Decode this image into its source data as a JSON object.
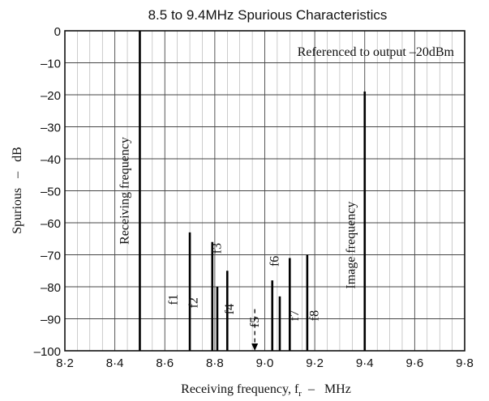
{
  "chart_data": {
    "type": "bar",
    "title": "8.5 to 9.4MHz Spurious Characteristics",
    "xlabel": "Receiving frequency, f",
    "xlabel_sub": "r",
    "xlabel_unit": "–   MHz",
    "ylabel": "Spurious   –   dB",
    "note": "Referenced to output –20dBm",
    "xlim": [
      8.2,
      9.8
    ],
    "ylim": [
      -100,
      0
    ],
    "x_ticks": [
      8.2,
      8.4,
      8.6,
      8.8,
      9.0,
      9.2,
      9.4,
      9.6,
      9.8
    ],
    "x_tick_labels": [
      "8·2",
      "8·4",
      "8·6",
      "8·8",
      "9·0",
      "9·2",
      "9·4",
      "9·6",
      "9·8"
    ],
    "y_ticks": [
      0,
      -10,
      -20,
      -30,
      -40,
      -50,
      -60,
      -70,
      -80,
      -90,
      -100
    ],
    "y_tick_labels": [
      "0",
      "–10",
      "–20",
      "–30",
      "–40",
      "–50",
      "–60",
      "–70",
      "–80",
      "–90",
      "–100"
    ],
    "grid": true,
    "spurs": [
      {
        "x": 8.5,
        "value": 0
      },
      {
        "x": 8.7,
        "value": -63
      },
      {
        "x": 8.79,
        "value": -66
      },
      {
        "x": 8.81,
        "value": -80
      },
      {
        "x": 8.85,
        "value": -75
      },
      {
        "x": 9.03,
        "value": -78
      },
      {
        "x": 9.06,
        "value": -83
      },
      {
        "x": 9.1,
        "value": -71
      },
      {
        "x": 9.17,
        "value": -70
      },
      {
        "x": 9.4,
        "value": -19
      }
    ],
    "arrow_marker": {
      "x": 8.96,
      "value": -100
    },
    "annotations": [
      {
        "text": "Receiving frequency",
        "x": 8.455,
        "y": -50
      },
      {
        "text": "Image frequency",
        "x": 9.36,
        "y": -67
      },
      {
        "text": "f1",
        "x": 8.65,
        "y": -84
      },
      {
        "text": "f2",
        "x": 8.73,
        "y": -85
      },
      {
        "text": "f3",
        "x": 8.825,
        "y": -68
      },
      {
        "text": "f4",
        "x": 8.875,
        "y": -87
      },
      {
        "text": "f5",
        "x": 8.975,
        "y": -91
      },
      {
        "text": "f6",
        "x": 9.055,
        "y": -72
      },
      {
        "text": "f7",
        "x": 9.135,
        "y": -89
      },
      {
        "text": "f8",
        "x": 9.215,
        "y": -89
      }
    ]
  }
}
